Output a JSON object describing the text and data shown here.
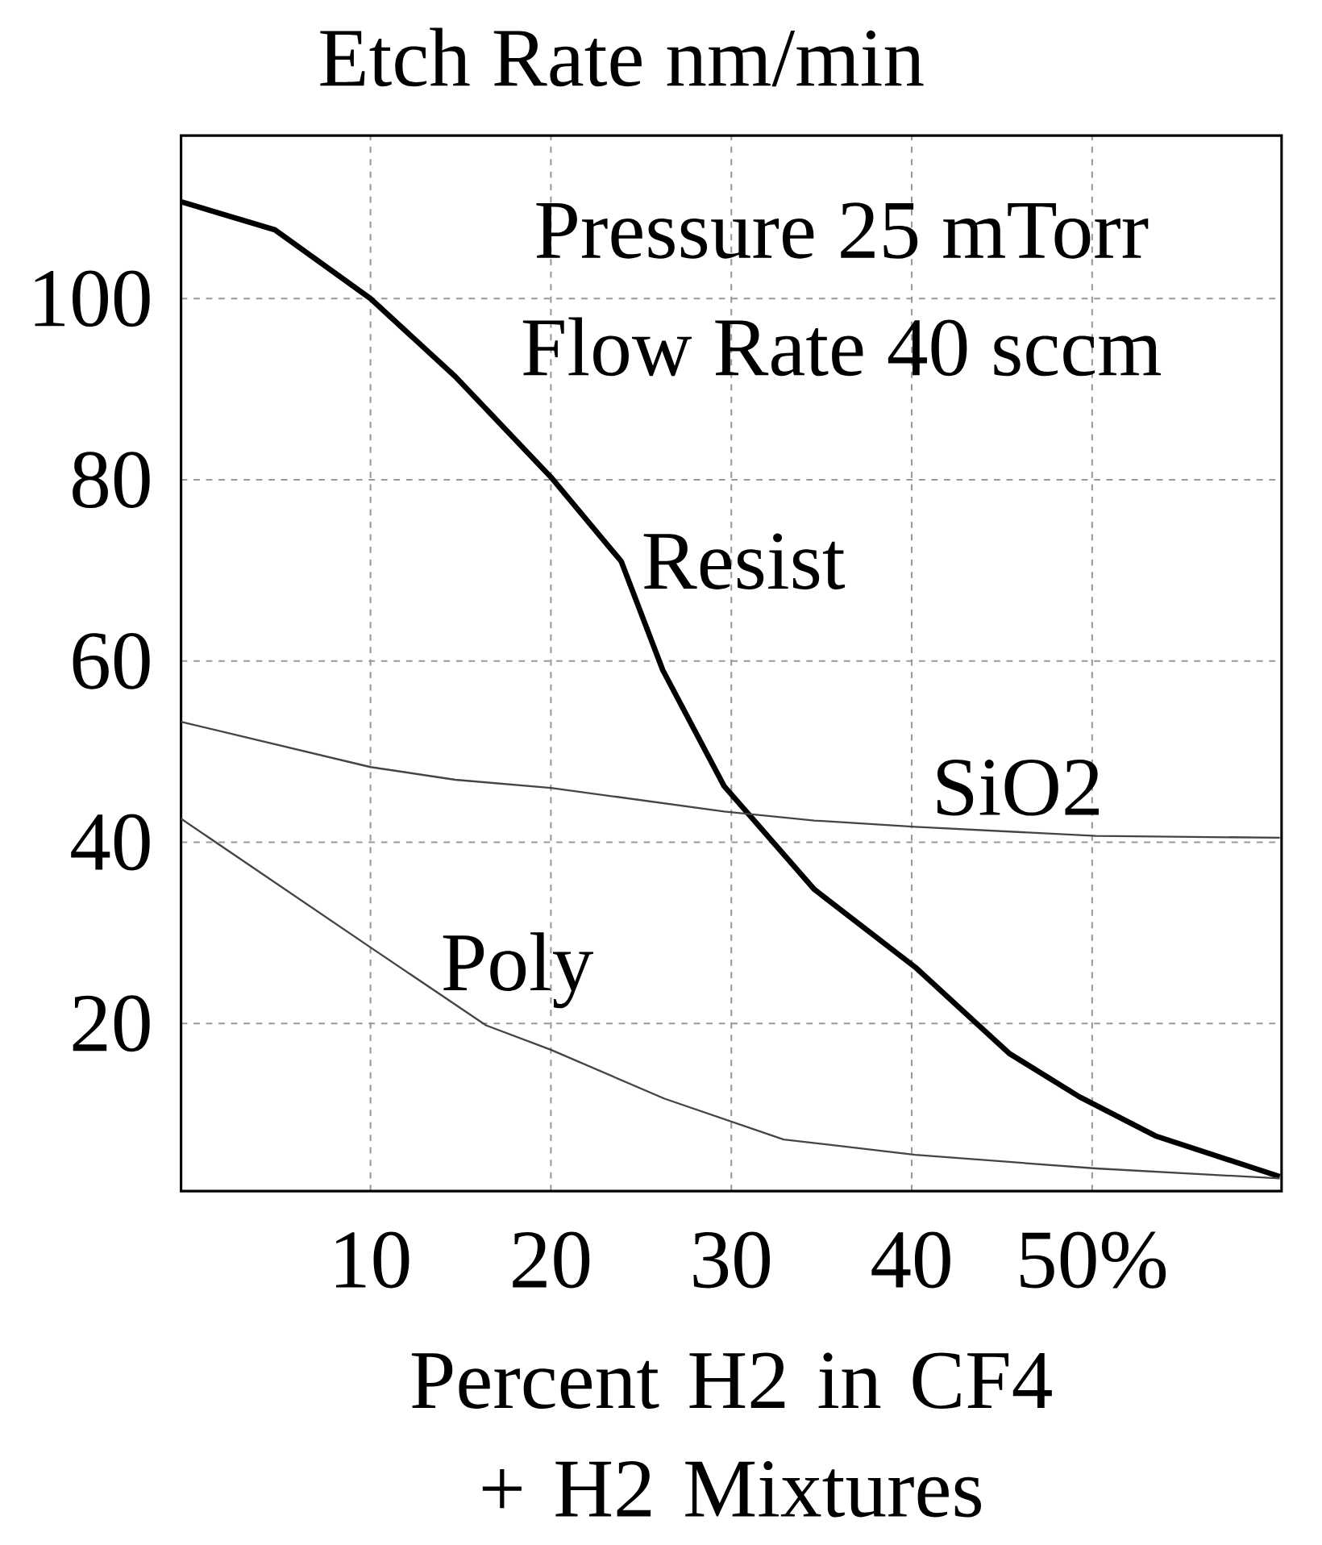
{
  "chart_data": {
    "type": "line",
    "title": "Etch Rate nm/min",
    "xlabel": "Percent H2 in CF4 + H2 Mixtures",
    "annotations": [
      "Pressure 25 mTorr",
      "Flow Rate 40 sccm"
    ],
    "xlim": [
      -0.5,
      60.5
    ],
    "ylim": [
      1.5,
      118
    ],
    "xticks": [
      10,
      20,
      30,
      40,
      {
        "value": 50,
        "label": "50%"
      }
    ],
    "yticks": [
      20,
      40,
      60,
      80,
      100
    ],
    "grid": true,
    "marker": "none",
    "line_style": "solid",
    "series": [
      {
        "name": "Resist",
        "color": "#000000",
        "x": [
          -0.5,
          4.7,
          10,
          14.7,
          20,
          23.9,
          26.2,
          29.6,
          34.6,
          40.2,
          45.4,
          49.3,
          53.5,
          60.4
        ],
        "values": [
          110.7,
          107.6,
          100,
          91.4,
          80.3,
          71,
          59,
          46.2,
          34.8,
          26.2,
          16.7,
          11.9,
          7.6,
          3.1
        ]
      },
      {
        "name": "SiO2",
        "color": "#444444",
        "x": [
          -0.5,
          10,
          14.7,
          20,
          29.6,
          34.6,
          40.2,
          50.2,
          60.4
        ],
        "values": [
          53.3,
          48.3,
          46.9,
          46,
          43.4,
          42.4,
          41.7,
          40.7,
          40.5
        ]
      },
      {
        "name": "Poly",
        "color": "#444444",
        "x": [
          -0.5,
          10,
          16.4,
          20,
          26.3,
          32.9,
          40.2,
          50.2,
          60.4
        ],
        "values": [
          42.6,
          28.4,
          19.8,
          17.1,
          11.7,
          7.2,
          5.5,
          4,
          2.9
        ]
      }
    ]
  }
}
